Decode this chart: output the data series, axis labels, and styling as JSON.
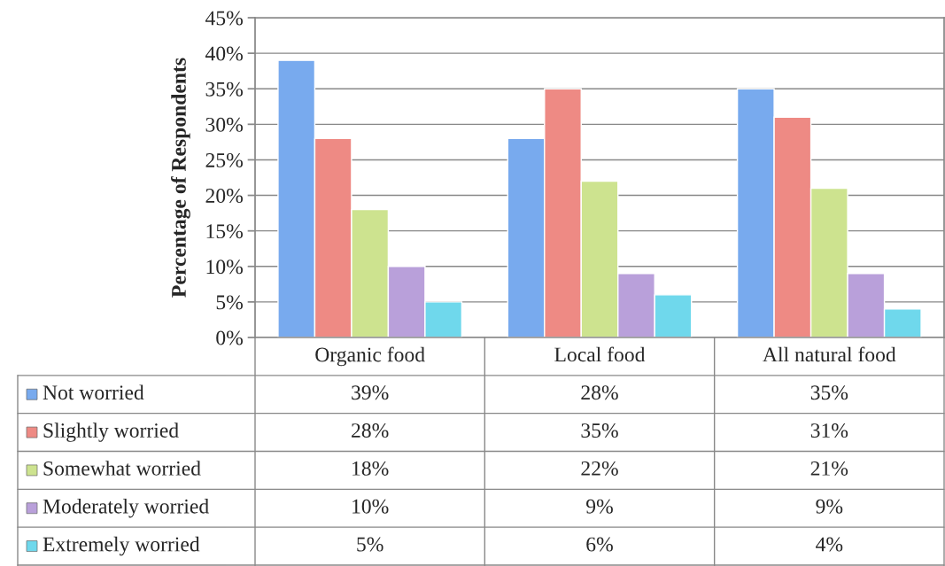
{
  "chart_data": {
    "type": "bar",
    "ylabel": "Percentage of Respondents",
    "categories": [
      "Organic food",
      "Local food",
      "All natural food"
    ],
    "series": [
      {
        "name": "Not worried",
        "color": "#78aaee",
        "values": [
          39,
          28,
          35
        ],
        "value_labels": [
          "39%",
          "28%",
          "35%"
        ]
      },
      {
        "name": "Slightly worried",
        "color": "#ee8a84",
        "values": [
          28,
          35,
          31
        ],
        "value_labels": [
          "28%",
          "35%",
          "31%"
        ]
      },
      {
        "name": "Somewhat worried",
        "color": "#cde38f",
        "values": [
          18,
          22,
          21
        ],
        "value_labels": [
          "18%",
          "22%",
          "21%"
        ]
      },
      {
        "name": "Moderately worried",
        "color": "#b9a0da",
        "values": [
          10,
          9,
          9
        ],
        "value_labels": [
          "10%",
          "9%",
          "9%"
        ]
      },
      {
        "name": "Extremely worried",
        "color": "#6fd8ec",
        "values": [
          5,
          6,
          4
        ],
        "value_labels": [
          "5%",
          "6%",
          "4%"
        ]
      }
    ],
    "ylim": [
      0,
      45
    ],
    "yticks": [
      {
        "value": 0,
        "label": "0%"
      },
      {
        "value": 5,
        "label": "5%"
      },
      {
        "value": 10,
        "label": "10%"
      },
      {
        "value": 15,
        "label": "15%"
      },
      {
        "value": 20,
        "label": "20%"
      },
      {
        "value": 25,
        "label": "25%"
      },
      {
        "value": 30,
        "label": "30%"
      },
      {
        "value": 35,
        "label": "35%"
      },
      {
        "value": 40,
        "label": "40%"
      },
      {
        "value": 45,
        "label": "45%"
      }
    ],
    "grid": "y",
    "legend": "bottom"
  }
}
